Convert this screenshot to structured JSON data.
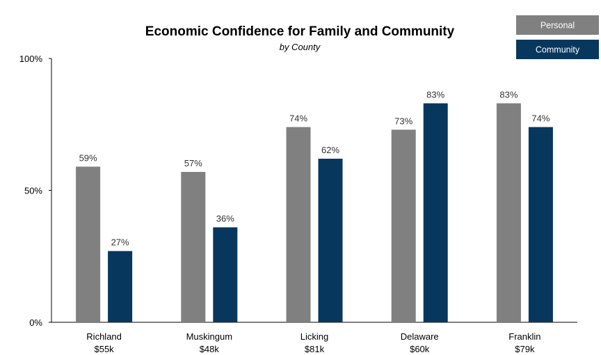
{
  "chart_data": {
    "type": "bar",
    "title": "Economic Confidence for Family and Community",
    "subtitle": "by County",
    "categories": [
      "Richland",
      "Muskingum",
      "Licking",
      "Delaware",
      "Franklin"
    ],
    "category_sublabels": [
      "$55k",
      "$48k",
      "$81k",
      "$60k",
      "$79k"
    ],
    "series": [
      {
        "name": "Personal",
        "values": [
          59,
          57,
          74,
          73,
          83
        ],
        "color": "#808080"
      },
      {
        "name": "Community",
        "values": [
          27,
          36,
          62,
          83,
          74
        ],
        "color": "#08375E"
      }
    ],
    "value_suffix": "%",
    "ylim": [
      0,
      100
    ],
    "yticks": [
      0,
      50,
      100
    ],
    "ytick_labels": [
      "0%",
      "50%",
      "100%"
    ],
    "grid": false,
    "legend_position": "top-right"
  }
}
